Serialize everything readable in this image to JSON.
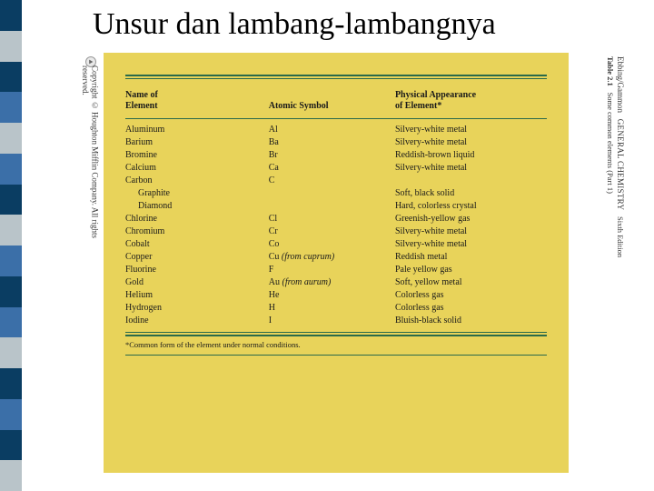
{
  "slide": {
    "title": "Unsur dan lambang-lambangnya"
  },
  "sidebar": {
    "stripes": [
      "#0a3d62",
      "#b9c4c9",
      "#0a3d62",
      "#3b6fa8",
      "#b9c4c9",
      "#3b6fa8",
      "#0a3d62",
      "#b9c4c9",
      "#3b6fa8",
      "#0a3d62",
      "#3b6fa8",
      "#b9c4c9",
      "#0a3d62",
      "#3b6fa8",
      "#0a3d62",
      "#b9c4c9"
    ]
  },
  "panel": {
    "background": "#e8d35a",
    "rule_color": "#2a6a4a",
    "copyright": "Copyright © Houghton Mifflin Company. All rights reserved.",
    "citation": {
      "source": "Ebbing/Gammon",
      "title": "GENERAL CHEMISTRY",
      "edition": "Sixth Edition",
      "table": "Table 2.1",
      "subtitle": "Some common elements (Part 1)"
    },
    "table": {
      "columns": [
        "Name of\nElement",
        "Atomic Symbol",
        "Physical Appearance\nof Element*"
      ],
      "rows": [
        {
          "name": "Aluminum",
          "symbol": "Al",
          "appearance": "Silvery-white metal"
        },
        {
          "name": "Barium",
          "symbol": "Ba",
          "appearance": "Silvery-white metal"
        },
        {
          "name": "Bromine",
          "symbol": "Br",
          "appearance": "Reddish-brown liquid"
        },
        {
          "name": "Calcium",
          "symbol": "Ca",
          "appearance": "Silvery-white metal"
        },
        {
          "name": "Carbon",
          "symbol": "C",
          "appearance": ""
        },
        {
          "name": "Graphite",
          "symbol": "",
          "appearance": "Soft, black solid",
          "sub": true
        },
        {
          "name": "Diamond",
          "symbol": "",
          "appearance": "Hard, colorless crystal",
          "sub": true
        },
        {
          "name": "Chlorine",
          "symbol": "Cl",
          "appearance": "Greenish-yellow gas"
        },
        {
          "name": "Chromium",
          "symbol": "Cr",
          "appearance": "Silvery-white metal"
        },
        {
          "name": "Cobalt",
          "symbol": "Co",
          "appearance": "Silvery-white metal"
        },
        {
          "name": "Copper",
          "symbol": "Cu (from cuprum)",
          "appearance": "Reddish metal",
          "italic_note": true
        },
        {
          "name": "Fluorine",
          "symbol": "F",
          "appearance": "Pale yellow gas"
        },
        {
          "name": "Gold",
          "symbol": "Au (from aurum)",
          "appearance": "Soft, yellow metal",
          "italic_note": true
        },
        {
          "name": "Helium",
          "symbol": "He",
          "appearance": "Colorless gas"
        },
        {
          "name": "Hydrogen",
          "symbol": "H",
          "appearance": "Colorless gas"
        },
        {
          "name": "Iodine",
          "symbol": "I",
          "appearance": "Bluish-black solid"
        }
      ],
      "footnote": "*Common form of the element under normal conditions."
    }
  }
}
